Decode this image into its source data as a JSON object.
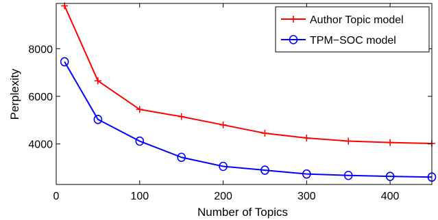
{
  "chart_data": {
    "type": "line",
    "title": "",
    "xlabel": "Number of Topics",
    "ylabel": "Perplexity",
    "xlim": [
      0,
      450
    ],
    "ylim": [
      2300,
      9900
    ],
    "xticks": [
      0,
      100,
      200,
      300,
      400
    ],
    "yticks": [
      4000,
      6000,
      8000
    ],
    "grid": false,
    "legend_position": "top-right",
    "x": [
      10,
      50,
      100,
      150,
      200,
      250,
      300,
      350,
      400,
      450
    ],
    "series": [
      {
        "name": "Author Topic model",
        "color": "#ff0000",
        "marker": "plus",
        "values": [
          9800,
          6650,
          5450,
          5150,
          4800,
          4450,
          4250,
          4120,
          4060,
          4020
        ]
      },
      {
        "name": "TPM−SOC model",
        "color": "#0000ff",
        "marker": "circle",
        "values": [
          7450,
          5030,
          4120,
          3440,
          3060,
          2900,
          2740,
          2680,
          2640,
          2610
        ]
      }
    ]
  }
}
